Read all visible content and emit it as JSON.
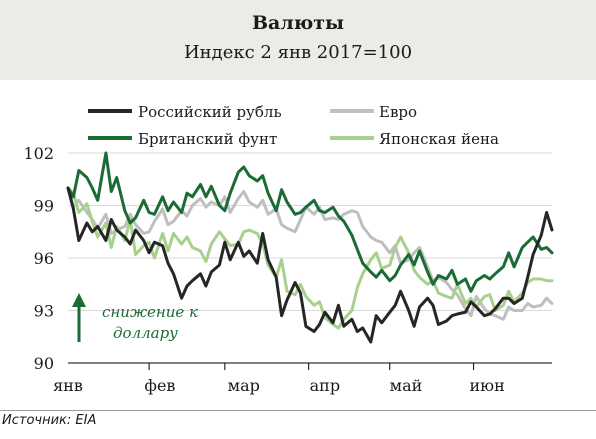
{
  "header": {
    "title": "Валюты",
    "subtitle": "Индекс 2 янв 2017=100"
  },
  "source": "Источник: EIA",
  "colors": {
    "header_bg": "#e9ede5",
    "russian_ruble": "#262626",
    "euro": "#bfbfbf",
    "british_pound": "#1a6b34",
    "japanese_yen": "#a8d08d",
    "annotation": "#1a6b34",
    "grid": "#d9d9d9"
  },
  "chart_data": {
    "type": "line",
    "x_labels": [
      "янв",
      "фев",
      "мар",
      "апр",
      "май",
      "июн"
    ],
    "x_start": "2017-01-02",
    "x_end": "2017-06-30",
    "yticks": [
      90,
      93,
      96,
      99,
      102
    ],
    "ylim": [
      90,
      102
    ],
    "grid": "horizontal",
    "legend_position": "top",
    "annotation": {
      "line1": "снижение к",
      "line2": "доллару",
      "arrow": "up"
    },
    "series": [
      {
        "name": "Российский рубль",
        "key": "russian_ruble",
        "x": [
          "2017-01-02",
          "2017-01-04",
          "2017-01-06",
          "2017-01-09",
          "2017-01-11",
          "2017-01-13",
          "2017-01-16",
          "2017-01-18",
          "2017-01-20",
          "2017-01-23",
          "2017-01-25",
          "2017-01-27",
          "2017-01-30",
          "2017-02-01",
          "2017-02-03",
          "2017-02-06",
          "2017-02-08",
          "2017-02-10",
          "2017-02-13",
          "2017-02-15",
          "2017-02-17",
          "2017-02-20",
          "2017-02-22",
          "2017-02-24",
          "2017-02-27",
          "2017-03-01",
          "2017-03-03",
          "2017-03-06",
          "2017-03-08",
          "2017-03-10",
          "2017-03-13",
          "2017-03-15",
          "2017-03-17",
          "2017-03-20",
          "2017-03-22",
          "2017-03-24",
          "2017-03-27",
          "2017-03-29",
          "2017-03-31",
          "2017-04-03",
          "2017-04-05",
          "2017-04-07",
          "2017-04-10",
          "2017-04-12",
          "2017-04-14",
          "2017-04-17",
          "2017-04-19",
          "2017-04-21",
          "2017-04-24",
          "2017-04-26",
          "2017-04-28",
          "2017-05-01",
          "2017-05-03",
          "2017-05-05",
          "2017-05-08",
          "2017-05-10",
          "2017-05-12",
          "2017-05-15",
          "2017-05-17",
          "2017-05-19",
          "2017-05-22",
          "2017-05-24",
          "2017-05-26",
          "2017-05-29",
          "2017-05-31",
          "2017-06-02",
          "2017-06-05",
          "2017-06-07",
          "2017-06-09",
          "2017-06-12",
          "2017-06-14",
          "2017-06-16",
          "2017-06-19",
          "2017-06-21",
          "2017-06-23",
          "2017-06-26",
          "2017-06-28",
          "2017-06-30"
        ],
        "values": [
          100.0,
          98.8,
          97.0,
          98.0,
          97.5,
          97.8,
          97.0,
          98.2,
          97.6,
          97.2,
          96.8,
          97.6,
          97.0,
          96.3,
          96.9,
          96.7,
          95.7,
          95.1,
          93.7,
          94.4,
          94.7,
          95.1,
          94.4,
          95.2,
          95.6,
          96.9,
          95.9,
          96.9,
          96.1,
          96.4,
          95.7,
          97.4,
          95.9,
          94.9,
          92.7,
          93.6,
          94.6,
          94.0,
          92.1,
          91.8,
          92.2,
          92.9,
          92.3,
          93.3,
          92.1,
          92.5,
          91.8,
          92.0,
          91.2,
          92.7,
          92.3,
          92.9,
          93.3,
          94.1,
          93.0,
          92.1,
          93.2,
          93.7,
          93.3,
          92.2,
          92.4,
          92.7,
          92.8,
          92.9,
          93.5,
          93.2,
          92.7,
          92.8,
          93.1,
          93.7,
          93.7,
          93.4,
          93.7,
          94.9,
          96.2,
          97.3,
          98.6,
          97.6
        ]
      },
      {
        "name": "Евро",
        "key": "euro",
        "x": [
          "2017-01-02",
          "2017-01-04",
          "2017-01-06",
          "2017-01-09",
          "2017-01-11",
          "2017-01-13",
          "2017-01-16",
          "2017-01-18",
          "2017-01-20",
          "2017-01-23",
          "2017-01-25",
          "2017-01-27",
          "2017-01-30",
          "2017-02-01",
          "2017-02-03",
          "2017-02-06",
          "2017-02-08",
          "2017-02-10",
          "2017-02-13",
          "2017-02-15",
          "2017-02-17",
          "2017-02-20",
          "2017-02-22",
          "2017-02-24",
          "2017-02-27",
          "2017-03-01",
          "2017-03-03",
          "2017-03-06",
          "2017-03-08",
          "2017-03-10",
          "2017-03-13",
          "2017-03-15",
          "2017-03-17",
          "2017-03-20",
          "2017-03-22",
          "2017-03-24",
          "2017-03-27",
          "2017-03-29",
          "2017-03-31",
          "2017-04-03",
          "2017-04-05",
          "2017-04-07",
          "2017-04-10",
          "2017-04-12",
          "2017-04-14",
          "2017-04-17",
          "2017-04-19",
          "2017-04-21",
          "2017-04-24",
          "2017-04-26",
          "2017-04-28",
          "2017-05-01",
          "2017-05-03",
          "2017-05-05",
          "2017-05-08",
          "2017-05-10",
          "2017-05-12",
          "2017-05-15",
          "2017-05-17",
          "2017-05-19",
          "2017-05-22",
          "2017-05-24",
          "2017-05-26",
          "2017-05-29",
          "2017-05-31",
          "2017-06-02",
          "2017-06-05",
          "2017-06-07",
          "2017-06-09",
          "2017-06-12",
          "2017-06-14",
          "2017-06-16",
          "2017-06-19",
          "2017-06-21",
          "2017-06-23",
          "2017-06-26",
          "2017-06-28",
          "2017-06-30"
        ],
        "values": [
          100.0,
          98.9,
          99.3,
          98.6,
          98.2,
          97.7,
          98.5,
          97.4,
          97.6,
          97.8,
          98.5,
          97.9,
          97.4,
          97.5,
          98.1,
          98.8,
          97.9,
          98.1,
          98.7,
          98.4,
          99.0,
          99.4,
          98.9,
          99.2,
          99.0,
          99.5,
          98.6,
          99.4,
          99.8,
          99.2,
          98.9,
          99.3,
          98.5,
          98.8,
          97.9,
          97.7,
          97.5,
          98.2,
          98.9,
          98.5,
          98.9,
          98.2,
          98.3,
          98.2,
          98.5,
          98.7,
          98.6,
          97.8,
          97.2,
          97.0,
          96.9,
          96.3,
          96.7,
          95.7,
          95.9,
          96.3,
          96.6,
          95.5,
          94.7,
          94.9,
          94.6,
          94.2,
          93.9,
          93.1,
          92.7,
          93.8,
          93.1,
          92.8,
          92.7,
          92.5,
          93.2,
          93.0,
          93.0,
          93.4,
          93.2,
          93.3,
          93.7,
          93.4
        ]
      },
      {
        "name": "Британский фунт",
        "key": "british_pound",
        "x": [
          "2017-01-02",
          "2017-01-04",
          "2017-01-06",
          "2017-01-09",
          "2017-01-11",
          "2017-01-13",
          "2017-01-16",
          "2017-01-18",
          "2017-01-20",
          "2017-01-23",
          "2017-01-25",
          "2017-01-27",
          "2017-01-30",
          "2017-02-01",
          "2017-02-03",
          "2017-02-06",
          "2017-02-08",
          "2017-02-10",
          "2017-02-13",
          "2017-02-15",
          "2017-02-17",
          "2017-02-20",
          "2017-02-22",
          "2017-02-24",
          "2017-02-27",
          "2017-03-01",
          "2017-03-03",
          "2017-03-06",
          "2017-03-08",
          "2017-03-10",
          "2017-03-13",
          "2017-03-15",
          "2017-03-17",
          "2017-03-20",
          "2017-03-22",
          "2017-03-24",
          "2017-03-27",
          "2017-03-29",
          "2017-03-31",
          "2017-04-03",
          "2017-04-05",
          "2017-04-07",
          "2017-04-10",
          "2017-04-12",
          "2017-04-14",
          "2017-04-17",
          "2017-04-19",
          "2017-04-21",
          "2017-04-24",
          "2017-04-26",
          "2017-04-28",
          "2017-05-01",
          "2017-05-03",
          "2017-05-05",
          "2017-05-08",
          "2017-05-10",
          "2017-05-12",
          "2017-05-15",
          "2017-05-17",
          "2017-05-19",
          "2017-05-22",
          "2017-05-24",
          "2017-05-26",
          "2017-05-29",
          "2017-05-31",
          "2017-06-02",
          "2017-06-05",
          "2017-06-07",
          "2017-06-09",
          "2017-06-12",
          "2017-06-14",
          "2017-06-16",
          "2017-06-19",
          "2017-06-21",
          "2017-06-23",
          "2017-06-26",
          "2017-06-28",
          "2017-06-30"
        ],
        "values": [
          100.0,
          99.5,
          101.0,
          100.6,
          100.0,
          99.3,
          102.0,
          99.8,
          100.6,
          98.7,
          98.0,
          98.3,
          99.3,
          98.6,
          98.5,
          99.5,
          98.7,
          99.2,
          98.6,
          99.7,
          99.5,
          100.2,
          99.5,
          100.1,
          99.0,
          98.7,
          99.7,
          100.9,
          101.2,
          100.7,
          100.4,
          100.7,
          99.7,
          98.7,
          99.9,
          99.2,
          98.5,
          98.6,
          98.9,
          99.3,
          98.7,
          98.6,
          98.9,
          98.4,
          98.1,
          97.3,
          96.5,
          95.7,
          95.2,
          94.9,
          95.3,
          94.7,
          95.0,
          95.6,
          96.2,
          95.6,
          96.4,
          95.2,
          94.5,
          95.0,
          94.8,
          95.3,
          94.5,
          94.8,
          94.1,
          94.7,
          95.0,
          94.8,
          95.1,
          95.5,
          96.3,
          95.5,
          96.6,
          96.9,
          97.2,
          96.5,
          96.6,
          96.3
        ]
      },
      {
        "name": "Японская йена",
        "key": "japanese_yen",
        "x": [
          "2017-01-02",
          "2017-01-04",
          "2017-01-06",
          "2017-01-09",
          "2017-01-11",
          "2017-01-13",
          "2017-01-16",
          "2017-01-18",
          "2017-01-20",
          "2017-01-23",
          "2017-01-25",
          "2017-01-27",
          "2017-01-30",
          "2017-02-01",
          "2017-02-03",
          "2017-02-06",
          "2017-02-08",
          "2017-02-10",
          "2017-02-13",
          "2017-02-15",
          "2017-02-17",
          "2017-02-20",
          "2017-02-22",
          "2017-02-24",
          "2017-02-27",
          "2017-03-01",
          "2017-03-03",
          "2017-03-06",
          "2017-03-08",
          "2017-03-10",
          "2017-03-13",
          "2017-03-15",
          "2017-03-17",
          "2017-03-20",
          "2017-03-22",
          "2017-03-24",
          "2017-03-27",
          "2017-03-29",
          "2017-03-31",
          "2017-04-03",
          "2017-04-05",
          "2017-04-07",
          "2017-04-10",
          "2017-04-12",
          "2017-04-14",
          "2017-04-17",
          "2017-04-19",
          "2017-04-21",
          "2017-04-24",
          "2017-04-26",
          "2017-04-28",
          "2017-05-01",
          "2017-05-03",
          "2017-05-05",
          "2017-05-08",
          "2017-05-10",
          "2017-05-12",
          "2017-05-15",
          "2017-05-17",
          "2017-05-19",
          "2017-05-22",
          "2017-05-24",
          "2017-05-26",
          "2017-05-29",
          "2017-05-31",
          "2017-06-02",
          "2017-06-05",
          "2017-06-07",
          "2017-06-09",
          "2017-06-12",
          "2017-06-14",
          "2017-06-16",
          "2017-06-19",
          "2017-06-21",
          "2017-06-23",
          "2017-06-26",
          "2017-06-28",
          "2017-06-30"
        ],
        "values": [
          100.0,
          99.7,
          98.6,
          99.1,
          98.1,
          97.2,
          98.0,
          96.6,
          97.8,
          97.0,
          98.2,
          96.2,
          96.7,
          96.9,
          96.0,
          97.4,
          96.4,
          97.4,
          96.8,
          97.2,
          96.6,
          96.4,
          95.8,
          96.8,
          97.5,
          97.1,
          96.7,
          96.8,
          97.5,
          97.6,
          97.4,
          96.8,
          95.6,
          94.9,
          95.9,
          94.1,
          93.9,
          94.5,
          93.8,
          93.3,
          93.5,
          92.6,
          92.2,
          92.0,
          92.5,
          93.0,
          94.3,
          95.1,
          95.9,
          96.3,
          95.4,
          95.6,
          96.6,
          97.2,
          96.3,
          95.3,
          94.9,
          94.5,
          94.7,
          94.0,
          93.8,
          93.7,
          94.5,
          93.4,
          93.7,
          93.2,
          93.8,
          93.9,
          93.0,
          93.3,
          94.1,
          93.5,
          94.0,
          94.6,
          94.8,
          94.8,
          94.7,
          94.7
        ]
      }
    ]
  }
}
